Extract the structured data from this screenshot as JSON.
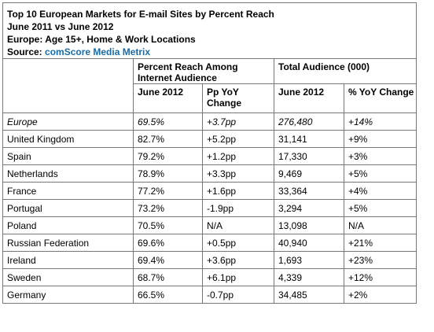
{
  "title": {
    "line1": "Top 10 European Markets for E-mail Sites by Percent Reach",
    "line2": "June 2011 vs June 2012",
    "line3": "Europe: Age 15+, Home & Work Locations",
    "source_label": "Source: ",
    "source_name": "comScore Media Metrix"
  },
  "headers": {
    "group1": "Percent Reach Among Internet Audience",
    "group2": "Total Audience (000)",
    "sub": [
      "June 2012",
      "Pp YoY Change",
      "June 2012",
      "% YoY Change"
    ]
  },
  "colors": {
    "border": "#777777",
    "source_link": "#1a6aa3"
  },
  "chart_data": {
    "type": "table",
    "columns": [
      "",
      "Percent Reach Among Internet Audience - June 2012",
      "Percent Reach Among Internet Audience - Pp YoY Change",
      "Total Audience (000) - June 2012",
      "Total Audience (000) - % YoY Change"
    ],
    "rows": [
      [
        "Europe",
        "69.5%",
        "+3.7pp",
        "276,480",
        "+14%"
      ],
      [
        "United Kingdom",
        "82.7%",
        "+5.2pp",
        "31,141",
        "+9%"
      ],
      [
        "Spain",
        "79.2%",
        "+1.2pp",
        "17,330",
        "+3%"
      ],
      [
        "Netherlands",
        "78.9%",
        "+3.3pp",
        "9,469",
        "+5%"
      ],
      [
        "France",
        "77.2%",
        "+1.6pp",
        "33,364",
        "+4%"
      ],
      [
        "Portugal",
        "73.2%",
        "-1.9pp",
        "3,294",
        "+5%"
      ],
      [
        "Poland",
        "70.5%",
        "N/A",
        "13,098",
        "N/A"
      ],
      [
        "Russian Federation",
        "69.6%",
        "+0.5pp",
        "40,940",
        "+21%"
      ],
      [
        "Ireland",
        "69.4%",
        "+3.6pp",
        "1,693",
        "+23%"
      ],
      [
        "Sweden",
        "68.7%",
        "+6.1pp",
        "4,339",
        "+12%"
      ],
      [
        "Germany",
        "66.5%",
        "-0.7pp",
        "34,485",
        "+2%"
      ]
    ]
  }
}
